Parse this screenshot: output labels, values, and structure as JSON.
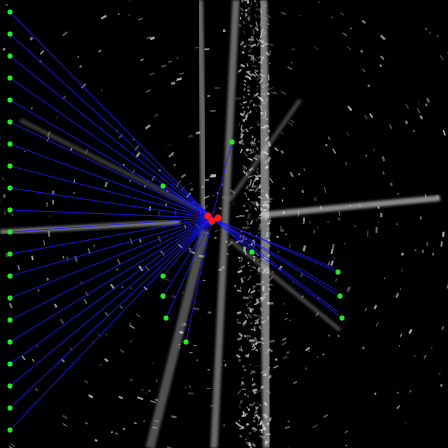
{
  "scene": {
    "description_kind": "radar-sonar-scan-visualization",
    "background_color": "#000000",
    "echo_color": "#e6e6e6",
    "ray_color": "#1a1aff",
    "landmark_color": "#22ee22",
    "origin_color": "#ff1a1a"
  }
}
